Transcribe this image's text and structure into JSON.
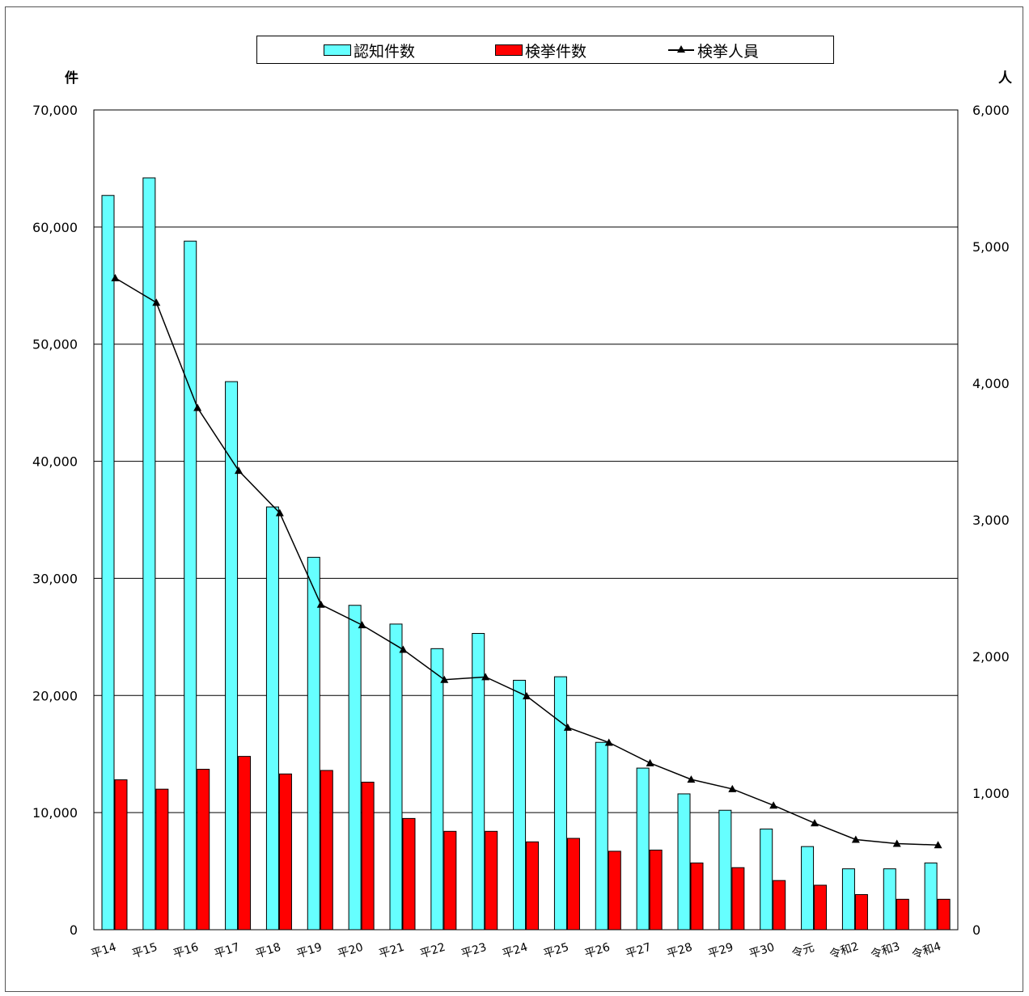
{
  "chart_data": {
    "type": "bar",
    "categories": [
      "平14",
      "平15",
      "平16",
      "平17",
      "平18",
      "平19",
      "平20",
      "平21",
      "平22",
      "平23",
      "平24",
      "平25",
      "平26",
      "平27",
      "平28",
      "平29",
      "平30",
      "令元",
      "令和2",
      "令和3",
      "令和4"
    ],
    "series": [
      {
        "name": "認知件数",
        "axis": "left",
        "kind": "bar",
        "color": "#66ffff",
        "values": [
          62700,
          64200,
          58800,
          46800,
          36100,
          31800,
          27700,
          26100,
          24000,
          25300,
          21300,
          21600,
          16000,
          13800,
          11600,
          10200,
          8600,
          7100,
          5200,
          5200,
          5700
        ]
      },
      {
        "name": "検挙件数",
        "axis": "left",
        "kind": "bar",
        "color": "#ff0000",
        "values": [
          12800,
          12000,
          13700,
          14800,
          13300,
          13600,
          12600,
          9500,
          8400,
          8400,
          7500,
          7800,
          6700,
          6800,
          5700,
          5300,
          4200,
          3800,
          3000,
          2600,
          2600
        ]
      },
      {
        "name": "検挙人員",
        "axis": "right",
        "kind": "line",
        "color": "#000000",
        "values": [
          4770,
          4590,
          3820,
          3360,
          3050,
          2380,
          2230,
          2050,
          1830,
          1850,
          1710,
          1480,
          1370,
          1220,
          1100,
          1030,
          910,
          780,
          660,
          630,
          620
        ]
      }
    ],
    "left_axis": {
      "unit": "件",
      "ylim": [
        0,
        70000
      ],
      "ticks": [
        "0",
        "10,000",
        "20,000",
        "30,000",
        "40,000",
        "50,000",
        "60,000",
        "70,000"
      ]
    },
    "right_axis": {
      "unit": "人",
      "ylim": [
        0,
        6000
      ],
      "ticks": [
        "0",
        "1,000",
        "2,000",
        "3,000",
        "4,000",
        "5,000",
        "6,000"
      ]
    },
    "grid": true,
    "legend_position": "top-center"
  },
  "legend": {
    "recognized_label": "認知件数",
    "cleared_label": "検挙件数",
    "arrested_label": "検挙人員"
  }
}
